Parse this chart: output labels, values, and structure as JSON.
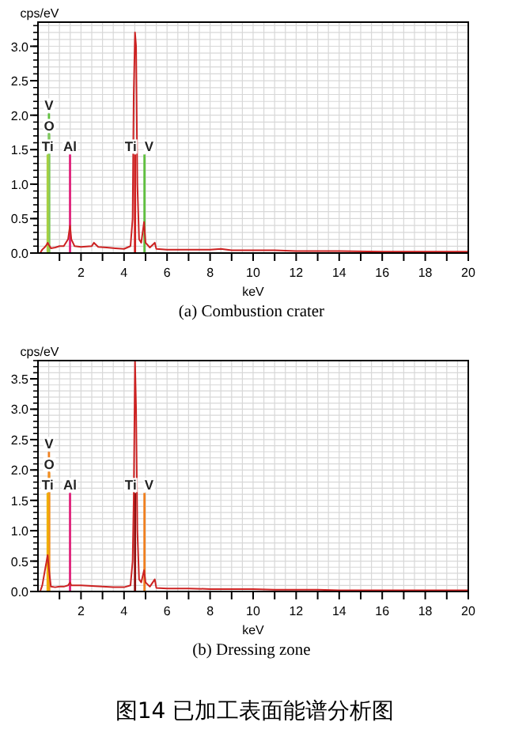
{
  "chart_data": [
    {
      "type": "line",
      "title": "(a) Combustion crater",
      "xlabel": "keV",
      "ylabel": "cps/eV",
      "xlim": [
        0,
        20
      ],
      "ylim": [
        0,
        3.35
      ],
      "xticks": [
        2,
        4,
        6,
        8,
        10,
        12,
        14,
        16,
        18,
        20
      ],
      "yticks": [
        {
          "value": 0,
          "label": "0.0"
        },
        {
          "value": 0.5,
          "label": "0.5"
        },
        {
          "value": 1,
          "label": "1.0"
        },
        {
          "value": 1.5,
          "label": "1.5"
        },
        {
          "value": 2,
          "label": "2.0"
        },
        {
          "value": 2.5,
          "label": "2.5"
        },
        {
          "value": 3,
          "label": "3.0"
        }
      ],
      "grid": true,
      "series": [
        {
          "color": "#cc2222",
          "x": [
            0.1,
            0.2,
            0.3,
            0.4,
            0.45,
            0.5,
            0.6,
            0.8,
            1.0,
            1.2,
            1.4,
            1.49,
            1.55,
            1.7,
            2.0,
            2.5,
            2.6,
            2.8,
            3.2,
            3.6,
            4.0,
            4.3,
            4.4,
            4.45,
            4.51,
            4.56,
            4.62,
            4.7,
            4.8,
            4.93,
            5.0,
            5.2,
            5.43,
            5.5,
            6,
            7,
            8,
            8.5,
            9,
            10,
            11,
            12,
            13,
            14,
            16,
            18,
            20
          ],
          "values": [
            0,
            0.05,
            0.08,
            0.12,
            0.15,
            0.12,
            0.07,
            0.08,
            0.1,
            0.1,
            0.2,
            0.4,
            0.2,
            0.1,
            0.09,
            0.1,
            0.15,
            0.09,
            0.08,
            0.07,
            0.06,
            0.1,
            0.5,
            2.3,
            3.2,
            3.0,
            1.0,
            0.2,
            0.15,
            0.45,
            0.15,
            0.08,
            0.15,
            0.06,
            0.05,
            0.05,
            0.05,
            0.06,
            0.04,
            0.04,
            0.04,
            0.03,
            0.03,
            0.03,
            0.02,
            0.02,
            0.02
          ]
        }
      ],
      "ref_lines": [
        {
          "axis": "x",
          "value": 0.45,
          "label": "Ti",
          "color": "#a8d040"
        },
        {
          "axis": "x",
          "value": 0.52,
          "label": "O",
          "color": "#80c860"
        },
        {
          "axis": "x",
          "value": 0.51,
          "label": "V",
          "color": "#60c040"
        },
        {
          "axis": "x",
          "value": 1.49,
          "label": "Al",
          "color": "#e0207a"
        },
        {
          "axis": "x",
          "value": 4.51,
          "label": "Ti",
          "color": "#d02020"
        },
        {
          "axis": "x",
          "value": 4.95,
          "label": "V",
          "color": "#60c040"
        }
      ]
    },
    {
      "type": "line",
      "title": "(b) Dressing zone",
      "xlabel": "keV",
      "ylabel": "cps/eV",
      "xlim": [
        0,
        20
      ],
      "ylim": [
        0,
        3.8
      ],
      "xticks": [
        2,
        4,
        6,
        8,
        10,
        12,
        14,
        16,
        18,
        20
      ],
      "yticks": [
        {
          "value": 0,
          "label": "0.0"
        },
        {
          "value": 0.5,
          "label": "0.5"
        },
        {
          "value": 1,
          "label": "1.0"
        },
        {
          "value": 1.5,
          "label": "1.5"
        },
        {
          "value": 2,
          "label": "2.0"
        },
        {
          "value": 2.5,
          "label": "2.5"
        },
        {
          "value": 3,
          "label": "3.0"
        },
        {
          "value": 3.5,
          "label": "3.5"
        }
      ],
      "grid": true,
      "annotations": [
        "图14  已加工表面能谱分析图"
      ],
      "series": [
        {
          "color": "#cc2222",
          "x": [
            0.1,
            0.2,
            0.3,
            0.4,
            0.45,
            0.5,
            0.6,
            0.8,
            1.0,
            1.2,
            1.4,
            1.49,
            1.55,
            1.7,
            2.0,
            2.5,
            3.0,
            3.5,
            4.0,
            4.3,
            4.4,
            4.45,
            4.51,
            4.56,
            4.62,
            4.7,
            4.8,
            4.93,
            5.0,
            5.2,
            5.43,
            5.5,
            6,
            7,
            8,
            9,
            10,
            11,
            12,
            13,
            14,
            16,
            18,
            20
          ],
          "values": [
            0,
            0.1,
            0.3,
            0.5,
            0.6,
            0.4,
            0.08,
            0.07,
            0.08,
            0.08,
            0.1,
            0.15,
            0.1,
            0.1,
            0.1,
            0.09,
            0.08,
            0.07,
            0.07,
            0.1,
            0.5,
            1.5,
            3.8,
            3.0,
            1.0,
            0.2,
            0.15,
            0.35,
            0.15,
            0.08,
            0.2,
            0.06,
            0.05,
            0.05,
            0.04,
            0.04,
            0.04,
            0.03,
            0.03,
            0.03,
            0.02,
            0.02,
            0.02,
            0.02
          ]
        }
      ],
      "ref_lines": [
        {
          "axis": "x",
          "value": 0.45,
          "label": "Ti",
          "color": "#f0b000"
        },
        {
          "axis": "x",
          "value": 0.52,
          "label": "O",
          "color": "#f09020"
        },
        {
          "axis": "x",
          "value": 0.51,
          "label": "V",
          "color": "#f08020"
        },
        {
          "axis": "x",
          "value": 1.49,
          "label": "Al",
          "color": "#e0207a"
        },
        {
          "axis": "x",
          "value": 4.51,
          "label": "Ti",
          "color": "#901010"
        },
        {
          "axis": "x",
          "value": 4.95,
          "label": "V",
          "color": "#f08020"
        }
      ]
    }
  ]
}
